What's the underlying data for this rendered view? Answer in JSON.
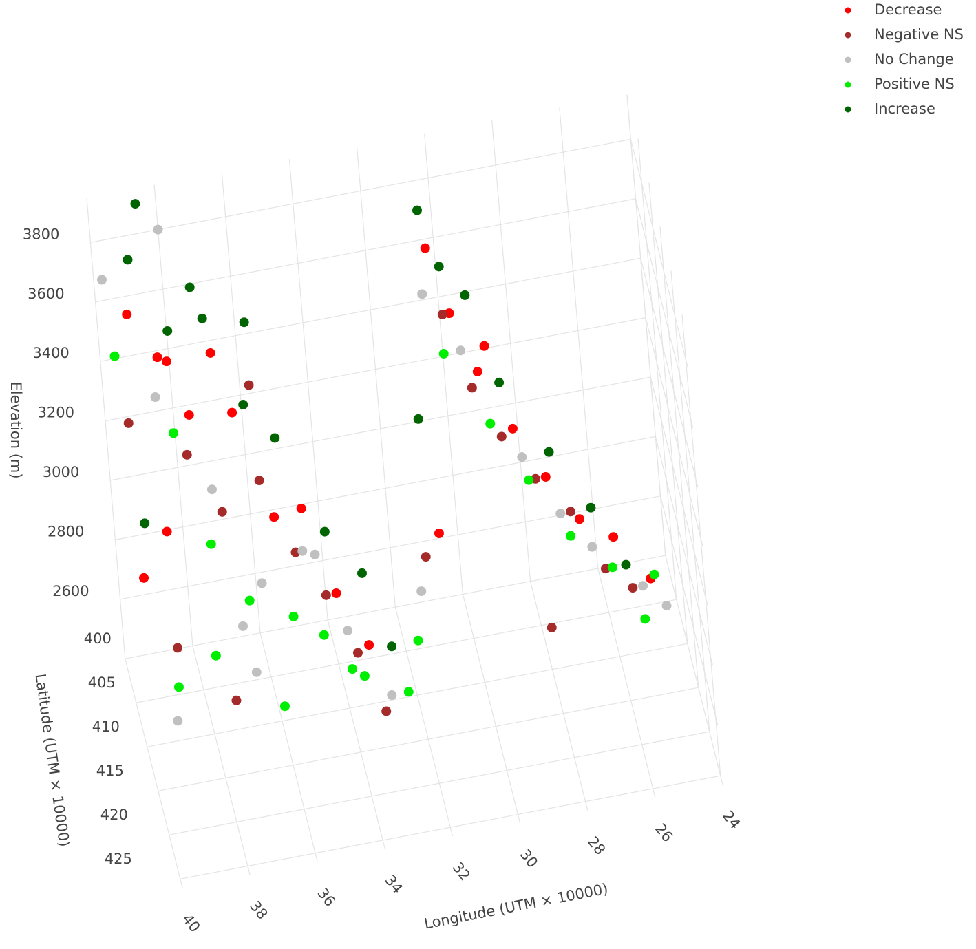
{
  "chart_data": {
    "type": "scatter3d",
    "xlabel": "Longitude (UTM × 10000)",
    "ylabel": "Latitude (UTM × 10000)",
    "zlabel": "Elevation (m)",
    "xlim": [
      24,
      40
    ],
    "ylim": [
      400,
      426
    ],
    "zlim": [
      2400,
      3950
    ],
    "xticks": [
      24,
      26,
      28,
      30,
      32,
      34,
      36,
      38,
      40
    ],
    "yticks": [
      400,
      405,
      410,
      415,
      420,
      425
    ],
    "zticks": [
      2600,
      2800,
      3000,
      3200,
      3400,
      3600,
      3800
    ],
    "grid": true,
    "legend": "top-right",
    "series": [
      {
        "name": "Decrease",
        "color": "#ff0000",
        "x": [
          39.2,
          38.5,
          37.8,
          38.9,
          36.5,
          35.7,
          34.8,
          34.2,
          33.5,
          38.2,
          30.3,
          29.8,
          29.2,
          28.4,
          27.6,
          26.8,
          25.9,
          25.0,
          36.9,
          39.6,
          30.8,
          28.9
        ],
        "y": [
          402,
          404,
          406,
          410,
          405,
          409,
          407,
          412,
          415,
          403,
          401,
          402,
          404,
          406,
          407,
          409,
          410,
          412,
          403,
          408,
          406,
          403
        ],
        "z": [
          3600,
          3500,
          3350,
          3100,
          3300,
          3050,
          3000,
          2850,
          2750,
          3450,
          3600,
          3400,
          3250,
          3100,
          2950,
          2850,
          2800,
          2700,
          3450,
          2900,
          2800,
          3300
        ]
      },
      {
        "name": "Negative NS",
        "color": "#a52a2a",
        "x": [
          39.5,
          38.0,
          37.2,
          36.0,
          35.2,
          34.5,
          33.8,
          39.0,
          37.5,
          30.0,
          29.4,
          28.7,
          27.9,
          27.0,
          26.2,
          25.5,
          31.2,
          35.9,
          28.0,
          33.2
        ],
        "y": [
          404,
          407,
          409,
          408,
          410,
          412,
          414,
          413,
          415,
          402,
          404,
          405,
          407,
          408,
          410,
          411,
          405,
          404,
          412,
          416
        ],
        "z": [
          3300,
          3250,
          3100,
          3150,
          2950,
          2850,
          2700,
          2800,
          2650,
          3400,
          3200,
          3050,
          2950,
          2850,
          2700,
          2650,
          2700,
          3350,
          2600,
          2550
        ]
      },
      {
        "name": "No Change",
        "color": "#c0c0c0",
        "x": [
          39.8,
          38.7,
          37.4,
          36.3,
          35.0,
          34.0,
          33.0,
          39.3,
          37.0,
          30.5,
          29.6,
          28.2,
          27.3,
          26.5,
          25.2,
          24.6,
          31.5,
          38.0,
          34.6,
          36.8
        ],
        "y": [
          401,
          405,
          408,
          411,
          410,
          413,
          416,
          416,
          412,
          401,
          403,
          406,
          408,
          409,
          411,
          412,
          407,
          400,
          409,
          414
        ],
        "z": [
          3700,
          3400,
          3150,
          2900,
          2950,
          2750,
          2600,
          2650,
          2800,
          3450,
          3300,
          3000,
          2850,
          2750,
          2650,
          2600,
          2650,
          3800,
          2900,
          2700
        ]
      },
      {
        "name": "Positive NS",
        "color": "#00ee00",
        "x": [
          39.7,
          38.3,
          37.6,
          36.7,
          35.5,
          34.7,
          33.7,
          32.5,
          39.1,
          37.9,
          36.1,
          30.1,
          29.0,
          28.1,
          27.1,
          26.0,
          25.3,
          31.8,
          34.0,
          24.8
        ],
        "y": [
          403,
          406,
          409,
          411,
          412,
          413,
          415,
          416,
          414,
          413,
          415,
          403,
          405,
          407,
          409,
          410,
          413,
          409,
          414,
          410
        ],
        "z": [
          3500,
          3300,
          3000,
          2850,
          2800,
          2750,
          2650,
          2600,
          2700,
          2750,
          2600,
          3300,
          3100,
          2950,
          2800,
          2700,
          2600,
          2550,
          2650,
          2650
        ]
      },
      {
        "name": "Increase",
        "color": "#006400",
        "x": [
          39.0,
          38.1,
          37.1,
          36.2,
          35.4,
          34.3,
          33.4,
          39.4,
          37.3,
          30.4,
          29.3,
          28.6,
          27.4,
          26.4,
          25.6,
          31.0,
          35.8,
          32.8,
          38.6,
          29.9
        ],
        "y": [
          401,
          403,
          404,
          406,
          407,
          410,
          412,
          407,
          402,
          400,
          402,
          404,
          406,
          408,
          410,
          403,
          402,
          414,
          400,
          400
        ],
        "z": [
          3750,
          3550,
          3600,
          3350,
          3250,
          3000,
          2900,
          3050,
          3650,
          3700,
          3450,
          3200,
          3000,
          2850,
          2700,
          3100,
          3500,
          2700,
          3900,
          3500
        ]
      }
    ]
  }
}
